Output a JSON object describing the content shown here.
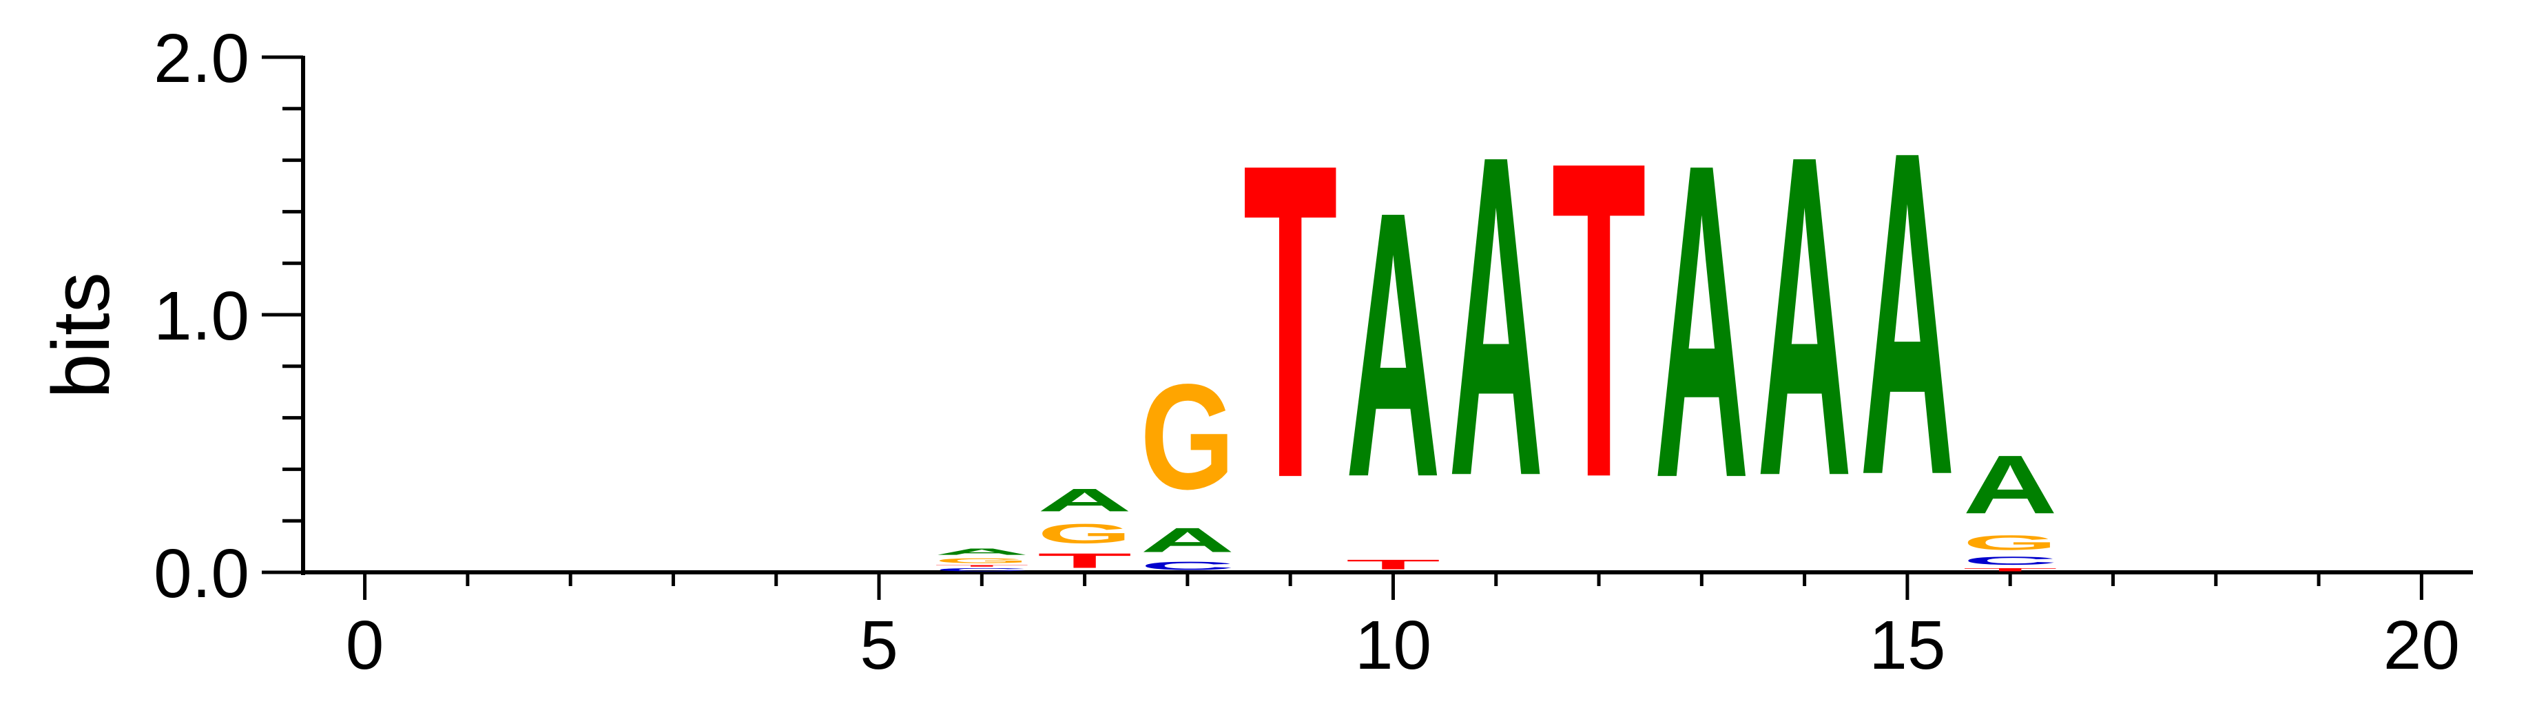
{
  "chart_data": {
    "type": "sequence-logo",
    "ylabel": "bits",
    "xlim": [
      -0.6,
      20.5
    ],
    "ylim": [
      0,
      2.0
    ],
    "xticks": [
      {
        "value": 0,
        "label": "0"
      },
      {
        "value": 5,
        "label": "5"
      },
      {
        "value": 10,
        "label": "10"
      },
      {
        "value": 15,
        "label": "15"
      },
      {
        "value": 20,
        "label": "20"
      }
    ],
    "yticks": [
      {
        "value": 0,
        "label": "0.0"
      },
      {
        "value": 1,
        "label": "1.0"
      },
      {
        "value": 2,
        "label": "2.0"
      }
    ],
    "colors": {
      "A": "#008000",
      "C": "#0000cc",
      "G": "#ffa500",
      "T": "#ff0000"
    },
    "positions": [
      {
        "pos": 6,
        "stack": [
          {
            "base": "C",
            "bits": 0.02
          },
          {
            "base": "T",
            "bits": 0.01
          },
          {
            "base": "G",
            "bits": 0.03
          },
          {
            "base": "A",
            "bits": 0.04
          }
        ]
      },
      {
        "pos": 7,
        "stack": [
          {
            "base": "T",
            "bits": 0.09
          },
          {
            "base": "G",
            "bits": 0.12
          },
          {
            "base": "A",
            "bits": 0.14
          }
        ]
      },
      {
        "pos": 8,
        "stack": [
          {
            "base": "C",
            "bits": 0.05
          },
          {
            "base": "A",
            "bits": 0.15
          },
          {
            "base": "G",
            "bits": 0.65
          }
        ]
      },
      {
        "pos": 9,
        "stack": [
          {
            "base": "T",
            "bits": 1.94
          }
        ]
      },
      {
        "pos": 10,
        "stack": [
          {
            "base": "T",
            "bits": 0.06
          },
          {
            "base": "A",
            "bits": 1.64
          }
        ]
      },
      {
        "pos": 11,
        "stack": [
          {
            "base": "A",
            "bits": 1.98
          }
        ]
      },
      {
        "pos": 12,
        "stack": [
          {
            "base": "T",
            "bits": 1.95
          }
        ]
      },
      {
        "pos": 13,
        "stack": [
          {
            "base": "A",
            "bits": 1.94
          }
        ]
      },
      {
        "pos": 14,
        "stack": [
          {
            "base": "A",
            "bits": 1.98
          }
        ]
      },
      {
        "pos": 15,
        "stack": [
          {
            "base": "A",
            "bits": 2.0
          }
        ]
      },
      {
        "pos": 16,
        "stack": [
          {
            "base": "T",
            "bits": 0.02
          },
          {
            "base": "C",
            "bits": 0.05
          },
          {
            "base": "G",
            "bits": 0.09
          },
          {
            "base": "A",
            "bits": 0.36
          }
        ]
      }
    ]
  }
}
